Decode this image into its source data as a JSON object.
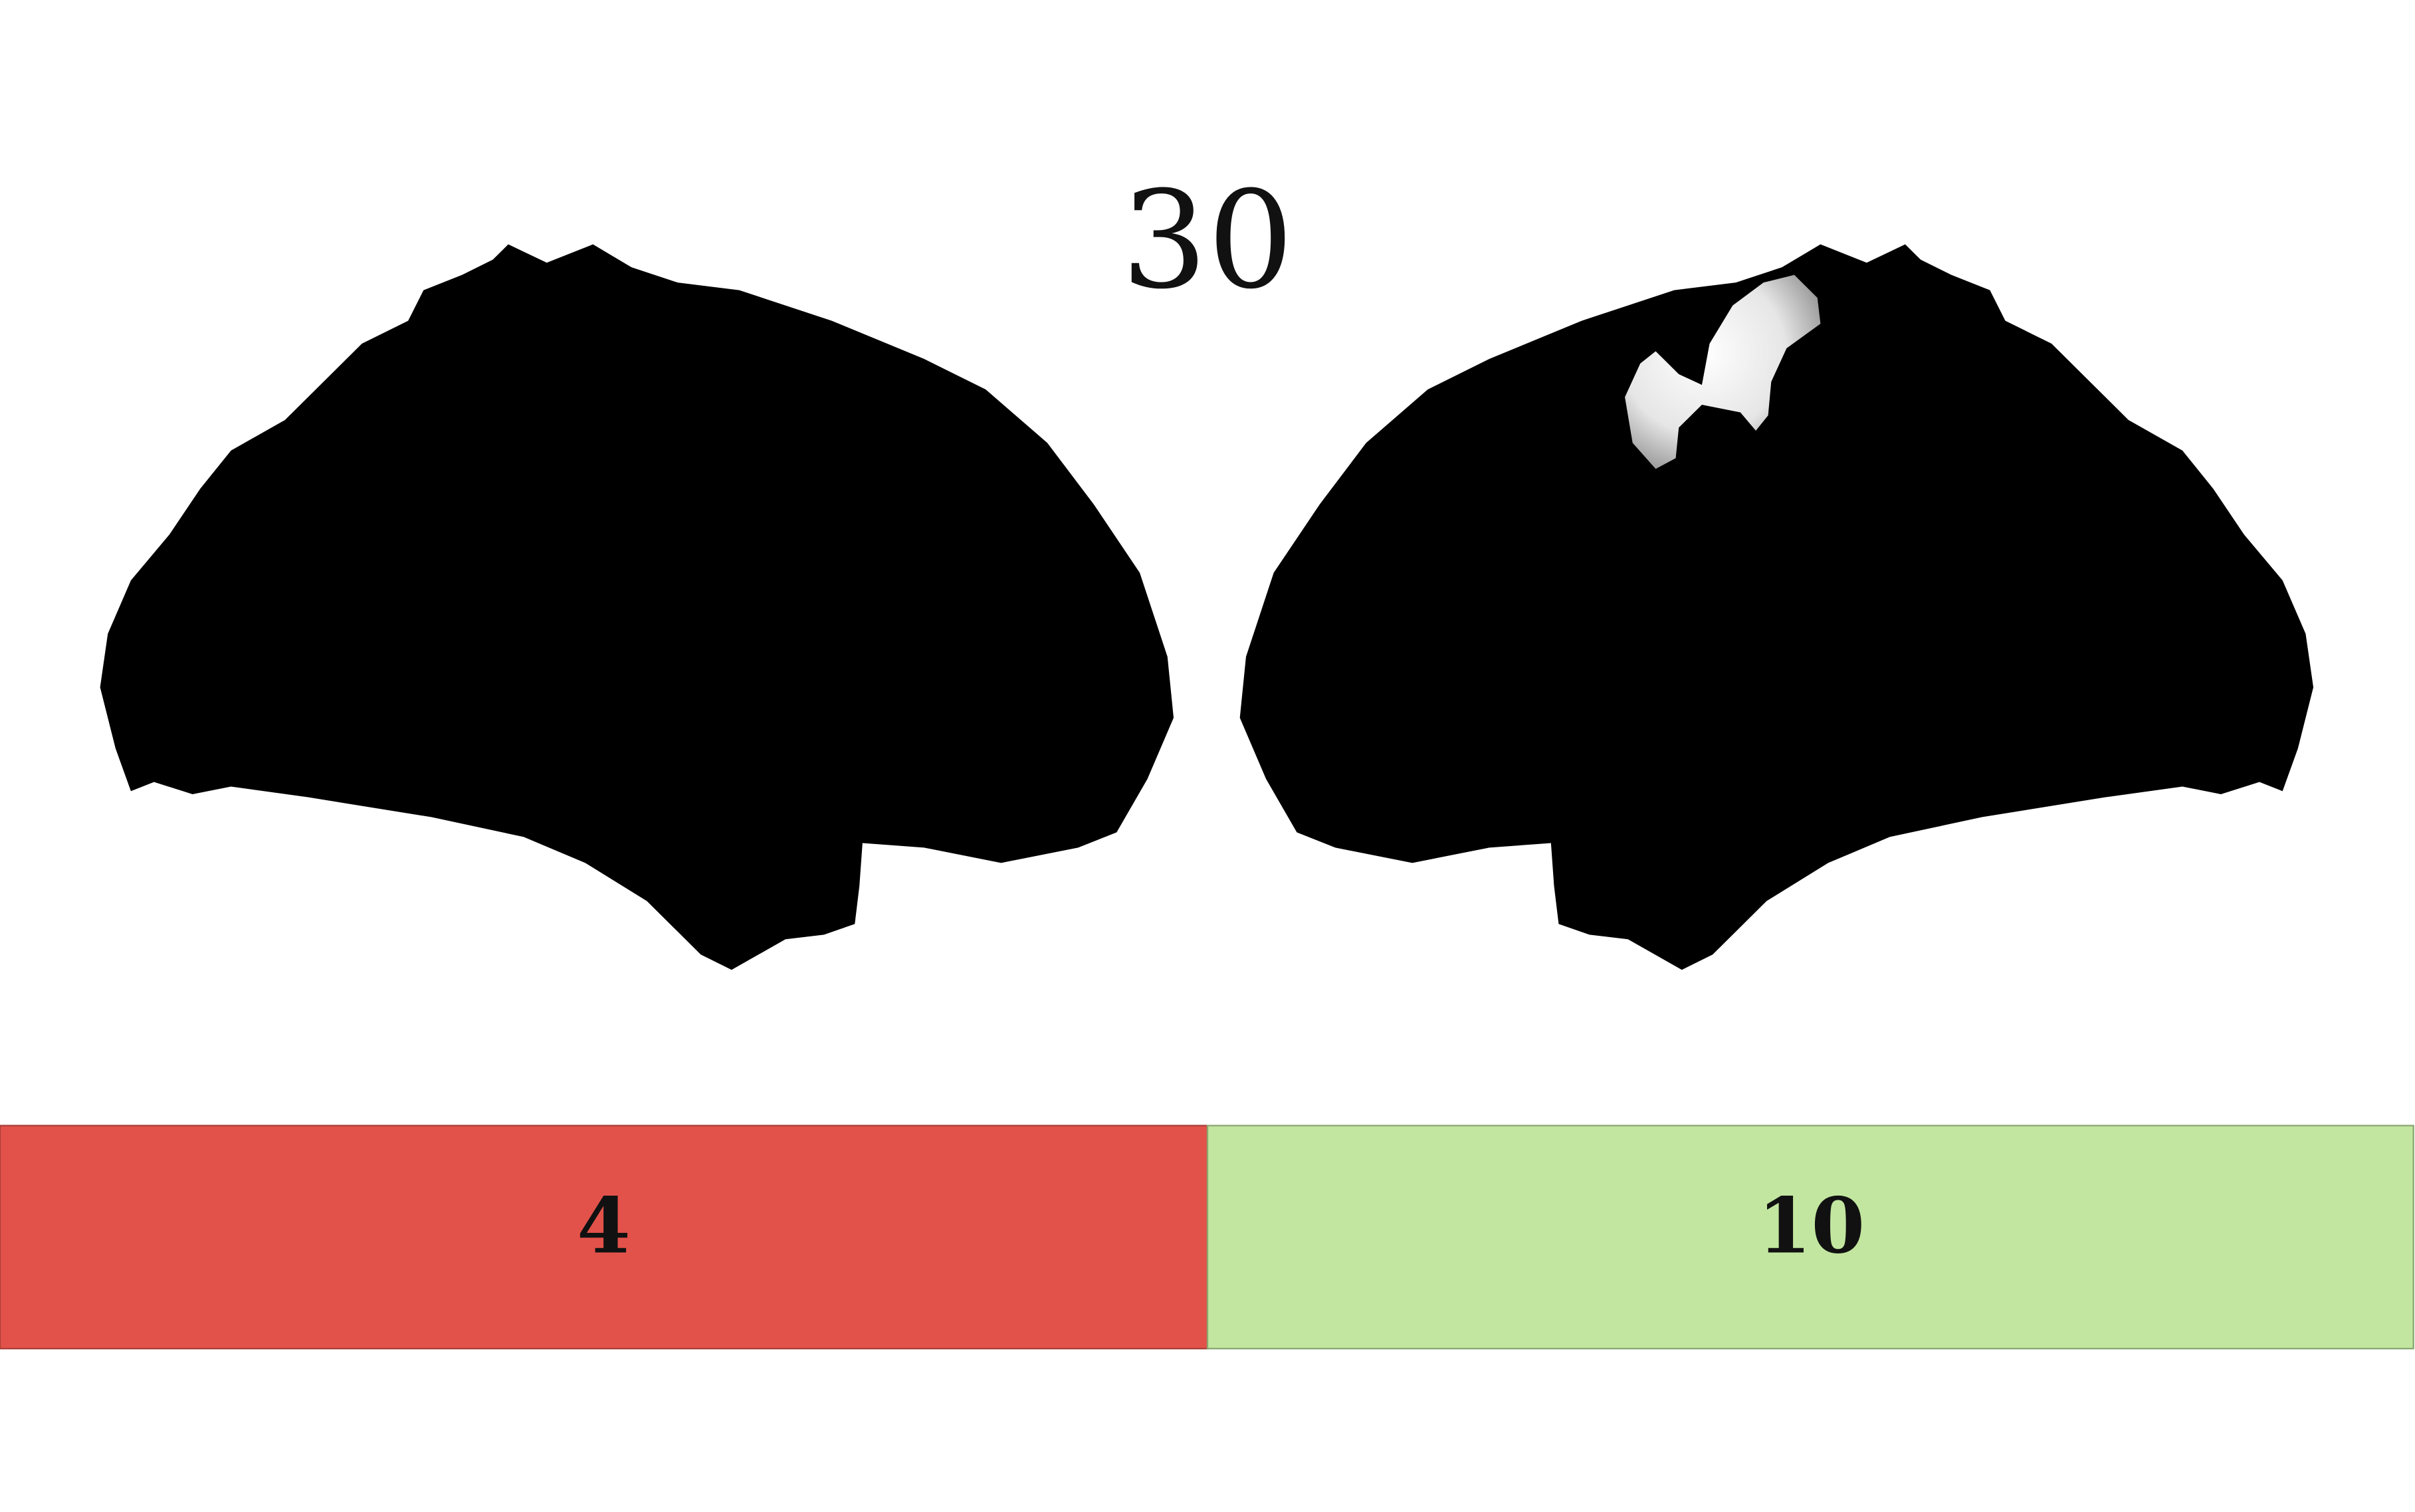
{
  "title": "30",
  "panels": [
    {
      "label": "4"
    },
    {
      "label": "10"
    }
  ]
}
